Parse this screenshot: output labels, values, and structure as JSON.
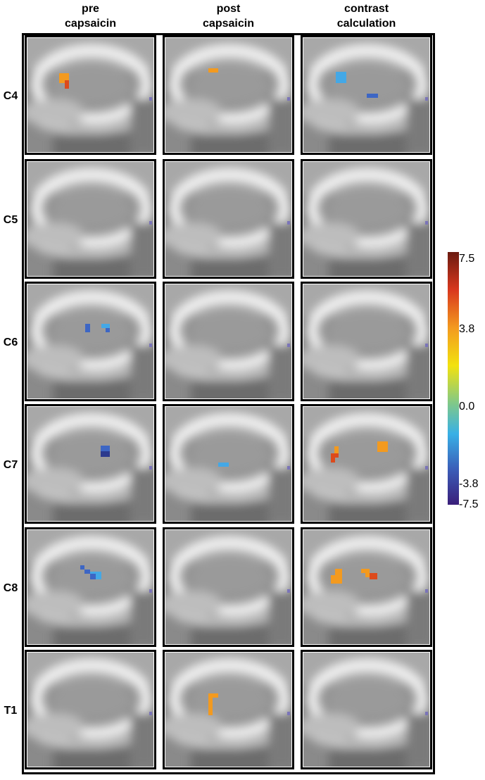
{
  "columns": [
    [
      "pre",
      "capsaicin"
    ],
    [
      "post",
      "capsaicin"
    ],
    [
      "contrast",
      "calculation"
    ]
  ],
  "rows": [
    "C4",
    "C5",
    "C6",
    "C7",
    "C8",
    "T1"
  ],
  "colorbar": {
    "ticks": [
      "7.5",
      "3.8",
      "0.0",
      "-3.8",
      "-7.5"
    ]
  }
}
